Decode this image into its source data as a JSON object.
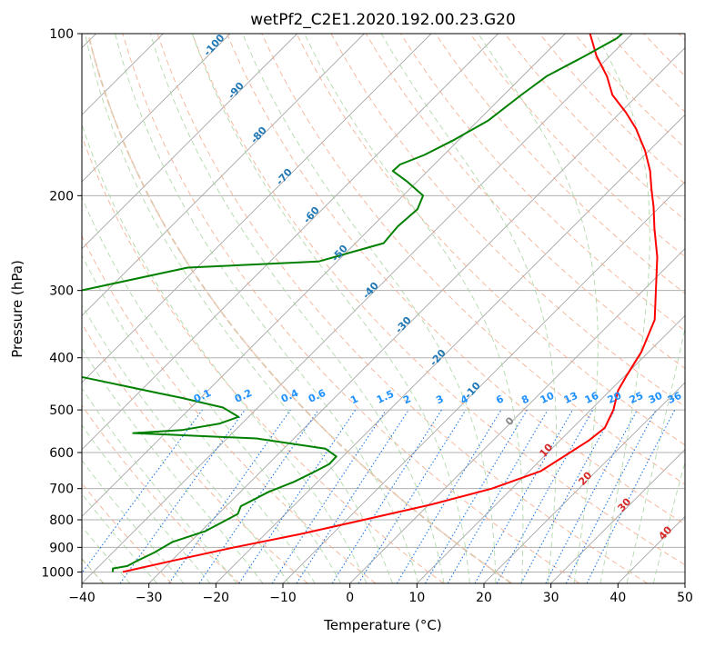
{
  "chart_data": {
    "type": "line",
    "title": "wetPf2_C2E1.2020.192.00.23.G20",
    "xlabel": "Temperature (°C)",
    "ylabel": "Pressure (hPa)",
    "xlim": [
      -40,
      50
    ],
    "ylim": [
      1050,
      100
    ],
    "y_scale": "log",
    "grid": true,
    "x_ticks": [
      "−40",
      "−30",
      "−20",
      "−10",
      "0",
      "10",
      "20",
      "30",
      "40",
      "50"
    ],
    "y_ticks": [
      {
        "p": 100,
        "label": "100"
      },
      {
        "p": 200,
        "label": "200"
      },
      {
        "p": 300,
        "label": "300"
      },
      {
        "p": 400,
        "label": "400"
      },
      {
        "p": 500,
        "label": "500"
      },
      {
        "p": 600,
        "label": "600"
      },
      {
        "p": 700,
        "label": "700"
      },
      {
        "p": 800,
        "label": "800"
      },
      {
        "p": 900,
        "label": "900"
      },
      {
        "p": 1000,
        "label": "1000"
      }
    ],
    "series": [
      {
        "color": "#ff0000",
        "kind": "temperature",
        "points": [
          [
            -35.6,
            1000
          ],
          [
            -29.4,
            950
          ],
          [
            -22.6,
            900
          ],
          [
            -14.7,
            850
          ],
          [
            -7.4,
            800
          ],
          [
            0.3,
            750
          ],
          [
            7.0,
            700
          ],
          [
            11.7,
            650
          ],
          [
            13.3,
            600
          ],
          [
            14.3,
            570
          ],
          [
            14.8,
            540
          ],
          [
            13.4,
            500
          ],
          [
            11.2,
            460
          ],
          [
            10.2,
            430
          ],
          [
            8.9,
            390
          ],
          [
            6.1,
            340
          ],
          [
            1.9,
            300
          ],
          [
            -2.9,
            260
          ],
          [
            -7.6,
            230
          ],
          [
            -10.9,
            210
          ],
          [
            -13.8,
            195
          ],
          [
            -16.8,
            180
          ],
          [
            -20.6,
            165
          ],
          [
            -25.3,
            150
          ],
          [
            -29.2,
            140
          ],
          [
            -33.8,
            130
          ],
          [
            -37.4,
            120
          ],
          [
            -42.0,
            110
          ],
          [
            -46.3,
            100
          ]
        ]
      },
      {
        "color": "#008000",
        "kind": "dewpoint",
        "points": [
          [
            -37.1,
            1000
          ],
          [
            -37.6,
            985
          ],
          [
            -35.8,
            975
          ],
          [
            -35.2,
            955
          ],
          [
            -33.8,
            920
          ],
          [
            -32.7,
            880
          ],
          [
            -29.4,
            840
          ],
          [
            -27.1,
            780
          ],
          [
            -27.8,
            755
          ],
          [
            -25.8,
            710
          ],
          [
            -23.5,
            680
          ],
          [
            -21.9,
            650
          ],
          [
            -20.9,
            630
          ],
          [
            -21.0,
            610
          ],
          [
            -23.8,
            590
          ],
          [
            -35.6,
            565
          ],
          [
            -50.2,
            555
          ],
          [
            -54.8,
            552
          ],
          [
            -48.0,
            545
          ],
          [
            -43.3,
            530
          ],
          [
            -41.5,
            515
          ],
          [
            -45.2,
            495
          ],
          [
            -52.8,
            475
          ],
          [
            -56.7,
            466
          ],
          [
            -70.5,
            435
          ],
          [
            -98.0,
            427
          ],
          [
            -96.0,
            330
          ],
          [
            -71.4,
            272
          ],
          [
            -52.8,
            265
          ],
          [
            -45.8,
            245
          ],
          [
            -46.2,
            228
          ],
          [
            -45.8,
            212
          ],
          [
            -47.0,
            200
          ],
          [
            -51.6,
            188
          ],
          [
            -55.2,
            180
          ],
          [
            -55.1,
            175
          ],
          [
            -52.9,
            168
          ],
          [
            -50.8,
            158
          ],
          [
            -48.5,
            145
          ],
          [
            -47.4,
            130
          ],
          [
            -46.4,
            120
          ],
          [
            -43.7,
            110
          ],
          [
            -41.6,
            102
          ],
          [
            -41.5,
            100
          ]
        ]
      }
    ],
    "dry_adiabat_labels": [
      "0",
      "10",
      "20",
      "30",
      "40"
    ],
    "moist_adiabat_labels": [
      "-100",
      "-90",
      "-80",
      "-70",
      "-60",
      "-50",
      "-40",
      "-30",
      "-20",
      "-10"
    ],
    "mixing_ratio_labels": [
      "0.1",
      "0.2",
      "0.4",
      "0.6",
      "1",
      "1.5",
      "2",
      "3",
      "4",
      "6",
      "8",
      "10",
      "13",
      "16",
      "20",
      "25",
      "30",
      "36"
    ],
    "colors": {
      "isotherm": "#a6a6a6",
      "isobar": "#b0b0b0",
      "dry_adiabat": "#f4a582",
      "moist_adiabat": "#a8d5a2",
      "mixing_ratio": "#1f77e4",
      "dry_label": "#d62728",
      "moist_label": "#1f77b4",
      "mixing_label": "#1e90ff",
      "anchor_curve": "#d9c3a6"
    }
  }
}
